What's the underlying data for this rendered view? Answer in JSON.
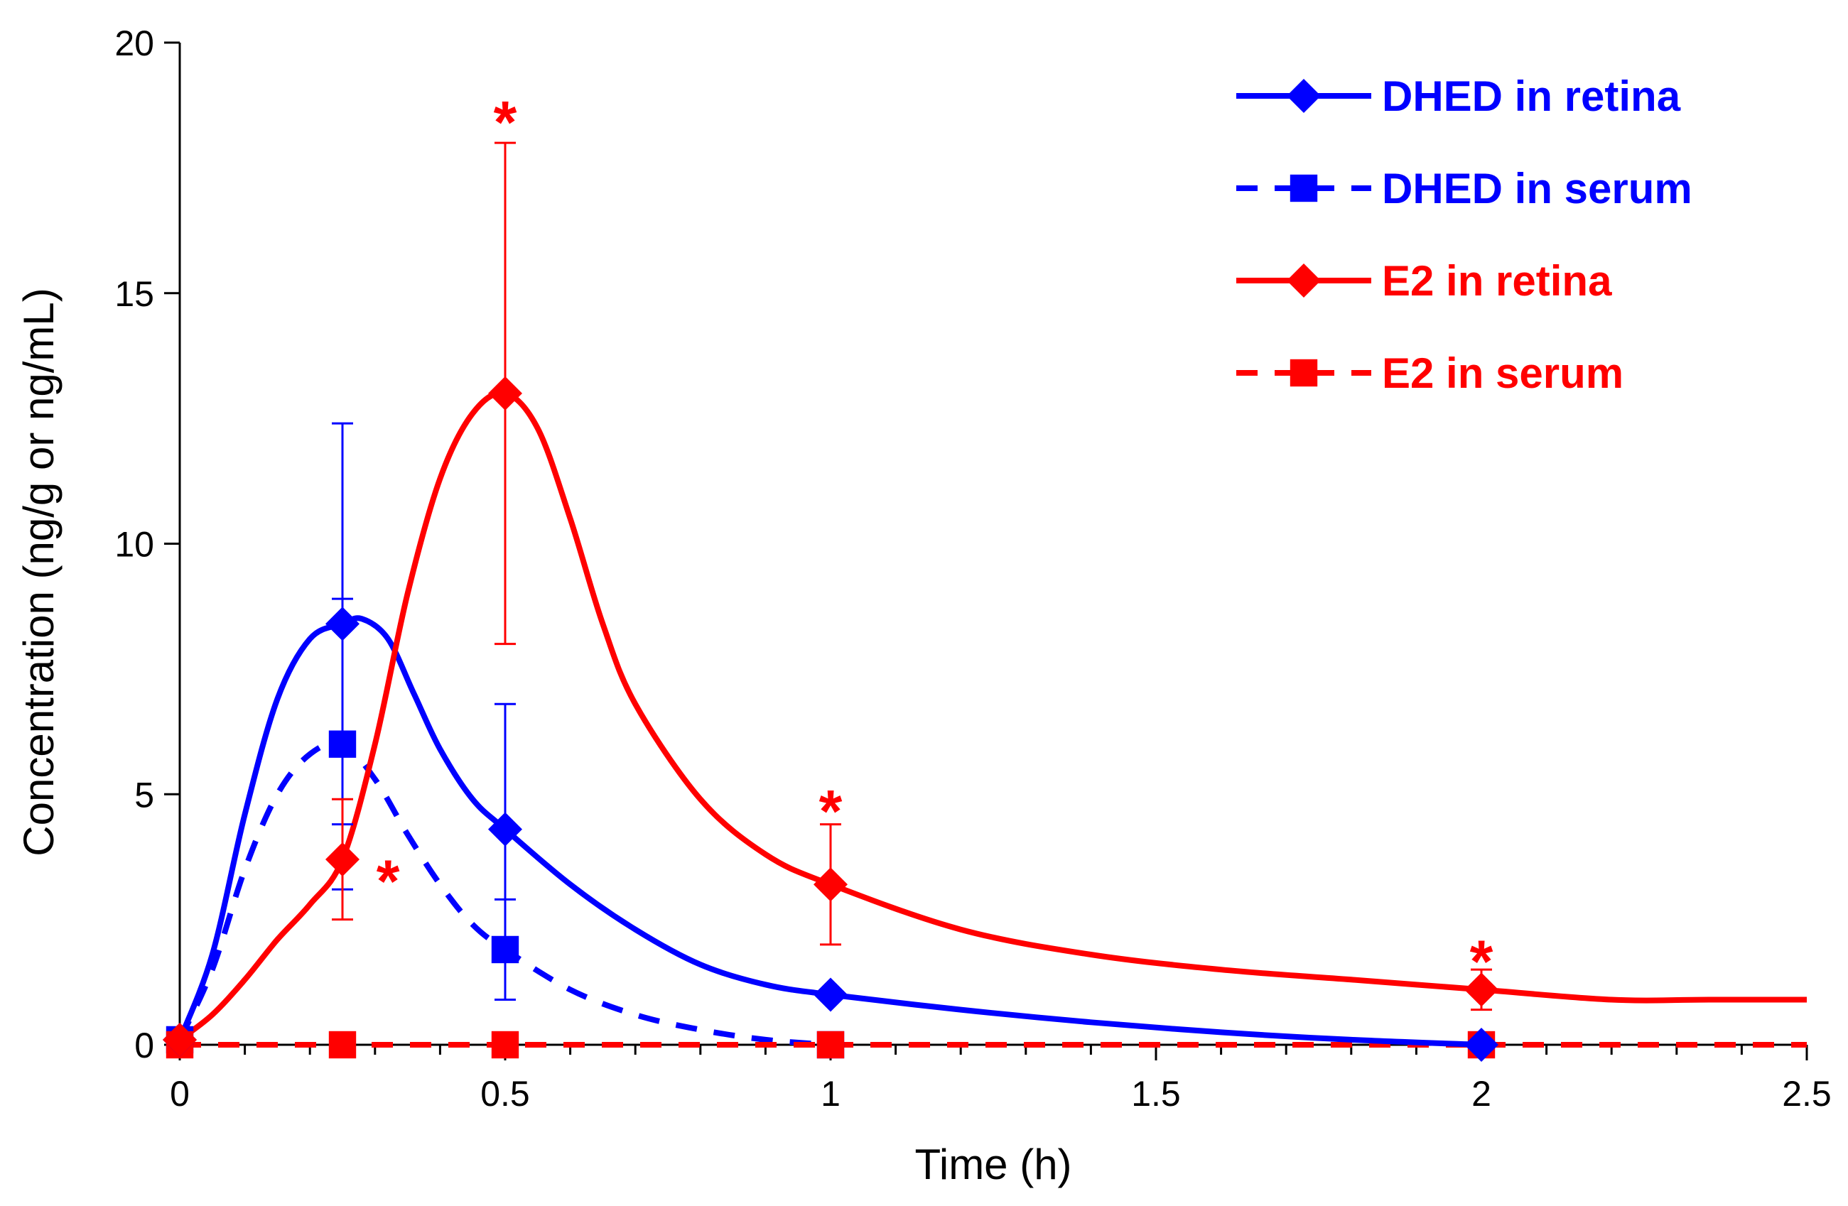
{
  "chart_data": {
    "type": "line",
    "title": "",
    "xlabel": "Time (h)",
    "ylabel": "Concentration (ng/g or ng/mL)",
    "xlim": [
      0,
      2.5
    ],
    "ylim": [
      0,
      20
    ],
    "x_ticks": [
      "0",
      "0.5",
      "1",
      "1.5",
      "2",
      "2.5"
    ],
    "y_ticks": [
      "0",
      "5",
      "10",
      "15",
      "20"
    ],
    "x_tick_values": [
      0,
      0.5,
      1,
      1.5,
      2,
      2.5
    ],
    "y_tick_values": [
      0,
      5,
      10,
      15,
      20
    ],
    "x_minor_step": 0.1,
    "legend_position": "top-right",
    "series": [
      {
        "name": "DHED in retina",
        "color": "#0000ff",
        "line": "solid",
        "marker": "diamond",
        "x": [
          0,
          0.25,
          0.5,
          1,
          2
        ],
        "y": [
          0.1,
          8.4,
          4.3,
          1.0,
          0.0
        ],
        "error": [
          0,
          4.0,
          2.5,
          0,
          0
        ],
        "curve_x": [
          0,
          0.05,
          0.1,
          0.15,
          0.2,
          0.25,
          0.28,
          0.32,
          0.36,
          0.4,
          0.45,
          0.5,
          0.6,
          0.7,
          0.8,
          0.9,
          1.0,
          1.2,
          1.4,
          1.6,
          1.8,
          2.0
        ],
        "curve_y": [
          0.1,
          1.8,
          4.6,
          6.9,
          8.1,
          8.4,
          8.5,
          8.1,
          7.0,
          5.9,
          4.9,
          4.3,
          3.2,
          2.3,
          1.6,
          1.2,
          1.0,
          0.7,
          0.45,
          0.25,
          0.1,
          0.0
        ]
      },
      {
        "name": "DHED in serum",
        "color": "#0000ff",
        "line": "dashed",
        "marker": "square",
        "x": [
          0,
          0.25,
          0.5,
          1
        ],
        "y": [
          0.1,
          6.0,
          1.9,
          0.0
        ],
        "error": [
          0,
          2.9,
          1.0,
          0
        ],
        "curve_x": [
          0,
          0.05,
          0.1,
          0.15,
          0.2,
          0.25,
          0.3,
          0.35,
          0.4,
          0.45,
          0.5,
          0.6,
          0.7,
          0.8,
          0.9,
          1.0
        ],
        "curve_y": [
          0.1,
          1.5,
          3.5,
          5.0,
          5.8,
          6.0,
          5.3,
          4.2,
          3.2,
          2.4,
          1.9,
          1.1,
          0.6,
          0.3,
          0.1,
          0.0
        ]
      },
      {
        "name": "E2 in retina",
        "color": "#ff0000",
        "line": "solid",
        "marker": "diamond",
        "x": [
          0,
          0.25,
          0.5,
          1,
          2
        ],
        "y": [
          0.1,
          3.7,
          13.0,
          3.2,
          1.1
        ],
        "error": [
          0,
          1.2,
          5.0,
          1.2,
          0.4
        ],
        "curve_x": [
          0,
          0.05,
          0.1,
          0.15,
          0.2,
          0.25,
          0.3,
          0.35,
          0.4,
          0.45,
          0.5,
          0.55,
          0.6,
          0.65,
          0.7,
          0.8,
          0.9,
          1.0,
          1.2,
          1.4,
          1.6,
          1.8,
          2.0,
          2.2,
          2.35,
          2.5
        ],
        "curve_y": [
          0.1,
          0.6,
          1.3,
          2.1,
          2.8,
          3.7,
          6.0,
          9.0,
          11.3,
          12.6,
          13.0,
          12.3,
          10.5,
          8.4,
          6.8,
          4.9,
          3.8,
          3.2,
          2.3,
          1.8,
          1.5,
          1.3,
          1.1,
          0.9,
          0.9,
          0.9
        ]
      },
      {
        "name": "E2 in serum",
        "color": "#ff0000",
        "line": "dashed",
        "marker": "square",
        "x": [
          0,
          0.25,
          0.5,
          1,
          2
        ],
        "y": [
          0.0,
          0.0,
          0.0,
          0.0,
          0.0
        ],
        "error": [
          0,
          0,
          0,
          0,
          0
        ],
        "curve_x": [
          0,
          2.5
        ],
        "curve_y": [
          0.0,
          0.0
        ]
      }
    ],
    "annotations": [
      {
        "text": "*",
        "x": 0.5,
        "y": 18.6,
        "color": "#ff0000"
      },
      {
        "text": "*",
        "x": 0.32,
        "y": 3.45,
        "color": "#ff0000"
      },
      {
        "text": "*",
        "x": 1.0,
        "y": 4.85,
        "color": "#ff0000"
      },
      {
        "text": "*",
        "x": 2.0,
        "y": 1.85,
        "color": "#ff0000"
      }
    ]
  }
}
